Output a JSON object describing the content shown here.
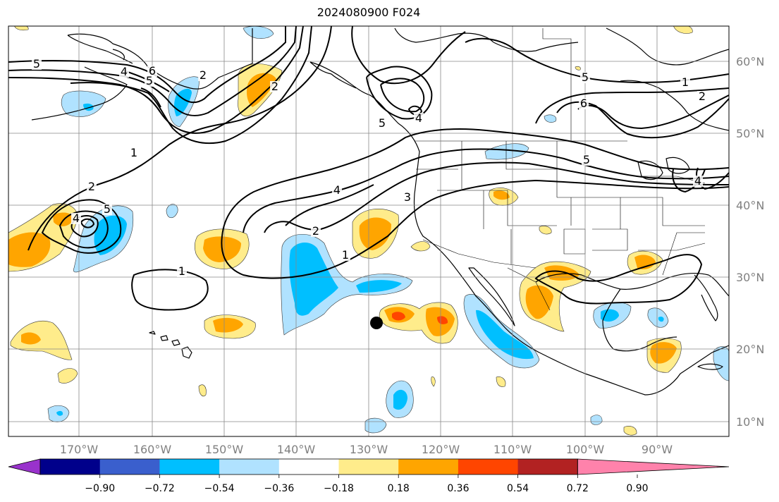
{
  "title": "2024080900 F024",
  "map": {
    "lon_labels": [
      "170°W",
      "160°W",
      "150°W",
      "140°W",
      "130°W",
      "120°W",
      "110°W",
      "100°W",
      "90°W"
    ],
    "lat_labels": [
      "60°N",
      "50°N",
      "40°N",
      "30°N",
      "20°N",
      "10°N"
    ],
    "label_color": "#808080",
    "marker_color": "#000000",
    "contour_labels": [
      "5",
      "4",
      "6",
      "5",
      "2",
      "1",
      "2",
      "5",
      "4",
      "3",
      "2",
      "1",
      "4",
      "1",
      "5",
      "1",
      "2",
      "6",
      "5",
      "4",
      "5",
      "2",
      "4"
    ]
  },
  "colorbar": {
    "ticks": [
      "−0.90",
      "−0.72",
      "−0.54",
      "−0.36",
      "−0.18",
      "0.18",
      "0.36",
      "0.54",
      "0.72",
      "0.90"
    ],
    "colors": [
      "#9932cc",
      "#00008b",
      "#3a5fcd",
      "#00bfff",
      "#b0e2ff",
      "#ffffff",
      "#ffec8b",
      "#ffa500",
      "#ff4500",
      "#b22222",
      "#ff82ab"
    ]
  }
}
